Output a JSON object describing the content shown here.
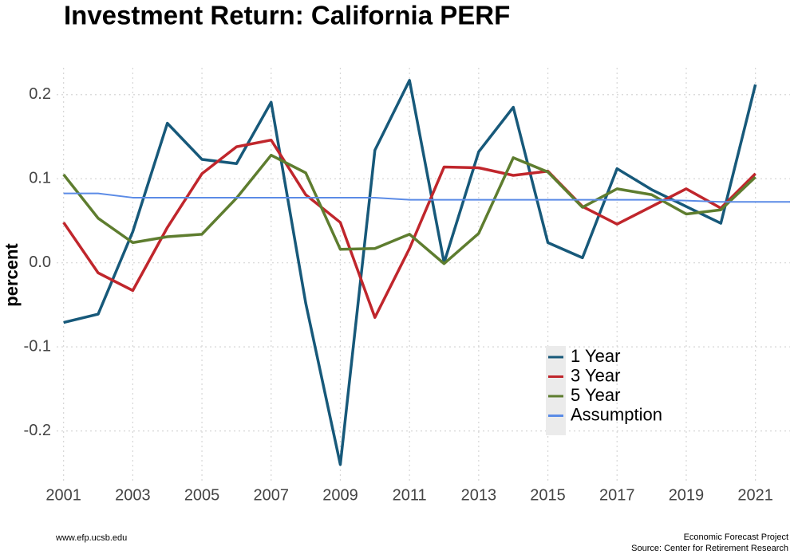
{
  "chart_data": {
    "type": "line",
    "title": "Investment Return: California PERF",
    "y_label": "percent",
    "x": [
      2001,
      2002,
      2003,
      2004,
      2005,
      2006,
      2007,
      2008,
      2009,
      2010,
      2011,
      2012,
      2013,
      2014,
      2015,
      2016,
      2017,
      2018,
      2019,
      2020,
      2021,
      2022
    ],
    "series": [
      {
        "name": "1 Year",
        "color": "#17597a",
        "values": [
          -0.071,
          -0.061,
          0.037,
          0.166,
          0.123,
          0.118,
          0.191,
          -0.048,
          -0.24,
          0.134,
          0.217,
          0.0,
          0.132,
          0.185,
          0.024,
          0.006,
          0.112,
          0.087,
          0.067,
          0.047,
          0.212,
          null
        ]
      },
      {
        "name": "3 Year",
        "color": "#c0262c",
        "values": [
          0.048,
          -0.012,
          -0.033,
          0.042,
          0.106,
          0.138,
          0.146,
          0.081,
          0.048,
          -0.065,
          0.017,
          0.114,
          0.113,
          0.104,
          0.109,
          0.067,
          0.046,
          0.067,
          0.088,
          0.065,
          0.106,
          null
        ]
      },
      {
        "name": "5 Year",
        "color": "#5e7d2f",
        "values": [
          0.105,
          0.053,
          0.024,
          0.031,
          0.034,
          0.077,
          0.128,
          0.107,
          0.016,
          0.017,
          0.034,
          -0.001,
          0.035,
          0.125,
          0.108,
          0.066,
          0.088,
          0.081,
          0.058,
          0.063,
          0.102,
          null
        ]
      },
      {
        "name": "Assumption",
        "color": "#5b8be6",
        "values": [
          0.0825,
          0.0825,
          0.0775,
          0.0775,
          0.0775,
          0.0775,
          0.0775,
          0.0775,
          0.0775,
          0.0775,
          0.075,
          0.075,
          0.075,
          0.075,
          0.075,
          0.075,
          0.075,
          0.075,
          0.074,
          0.0725,
          0.0725,
          0.0725
        ]
      }
    ],
    "xlim": [
      2000.8,
      2022
    ],
    "xticks": [
      2001,
      2003,
      2005,
      2007,
      2009,
      2011,
      2013,
      2015,
      2017,
      2019,
      2021
    ],
    "ylim": [
      -0.262,
      0.232
    ],
    "yticks": [
      0.2,
      0.1,
      {
        "value": 0,
        "label": "0.0"
      },
      -0.1,
      -0.2
    ],
    "grid": true,
    "legend_position": "bottom-right",
    "footer_left": "www.efp.ucsb.edu",
    "footer_right": [
      "Economic Forecast Project",
      "Source: Center for Retirement Research"
    ]
  }
}
